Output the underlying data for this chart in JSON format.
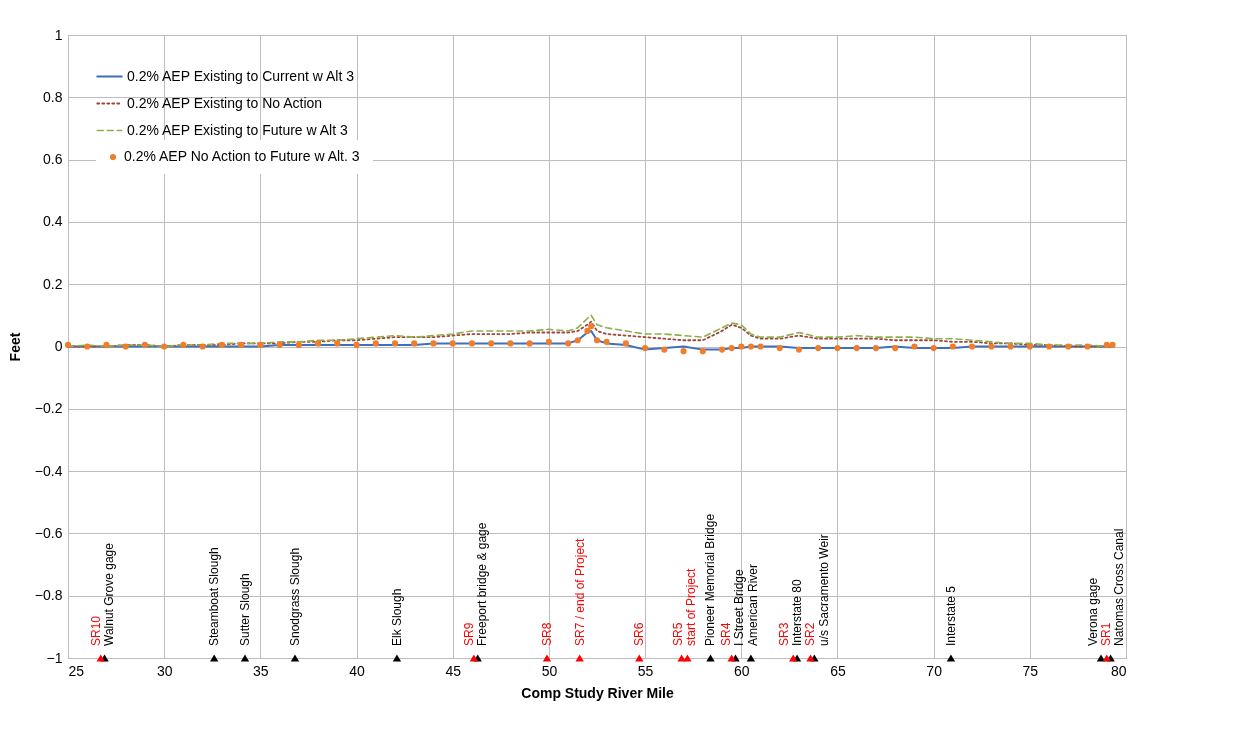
{
  "chart_data": {
    "type": "line",
    "xlabel": "Comp Study River Mile",
    "ylabel": "Feet",
    "xlim": [
      25,
      80
    ],
    "ylim": [
      -1,
      1
    ],
    "xticks": [
      25,
      30,
      35,
      40,
      45,
      50,
      55,
      60,
      65,
      70,
      75,
      80
    ],
    "yticks": [
      -1,
      -0.8,
      -0.6,
      -0.4,
      -0.2,
      0,
      0.2,
      0.4,
      0.6,
      0.8,
      1
    ],
    "grid": true,
    "legend": "top left",
    "x": [
      25,
      26,
      27,
      28,
      29,
      30,
      31,
      32,
      33,
      34,
      35,
      36,
      37,
      38,
      39,
      40,
      41,
      42,
      43,
      44,
      45,
      46,
      47,
      48,
      49,
      50,
      51,
      51.5,
      52,
      52.2,
      52.5,
      53,
      54,
      55,
      56,
      57,
      58,
      59,
      59.5,
      60,
      60.5,
      61,
      62,
      63,
      64,
      65,
      66,
      67,
      68,
      69,
      70,
      71,
      72,
      73,
      74,
      75,
      76,
      77,
      78,
      79,
      79.3
    ],
    "series": [
      {
        "name": "0.2% AEP Existing to Current w Alt 3",
        "color": "#3f6fc0",
        "line_style": "solid",
        "values": [
          0,
          0,
          0,
          0,
          0,
          0,
          0,
          0,
          0,
          0,
          0,
          0.005,
          0.005,
          0.005,
          0.005,
          0.005,
          0.005,
          0.005,
          0.005,
          0.01,
          0.01,
          0.01,
          0.01,
          0.01,
          0.01,
          0.01,
          0.01,
          0.02,
          0.045,
          0.05,
          0.02,
          0.01,
          0.005,
          -0.01,
          -0.005,
          0,
          -0.01,
          -0.01,
          -0.005,
          -0.005,
          0,
          0,
          0,
          -0.005,
          -0.005,
          -0.005,
          -0.005,
          -0.005,
          0,
          -0.005,
          -0.005,
          -0.005,
          0,
          0,
          0,
          0,
          0,
          0,
          0,
          0,
          0
        ]
      },
      {
        "name": "0.2% AEP Existing to No Action",
        "color": "#a0453a",
        "line_style": "dotted",
        "values": [
          0,
          0,
          0,
          0.005,
          0.005,
          0,
          0.005,
          0.005,
          0.005,
          0.01,
          0.01,
          0.01,
          0.015,
          0.015,
          0.02,
          0.02,
          0.025,
          0.03,
          0.03,
          0.03,
          0.035,
          0.04,
          0.04,
          0.04,
          0.045,
          0.045,
          0.045,
          0.05,
          0.07,
          0.08,
          0.05,
          0.04,
          0.035,
          0.03,
          0.025,
          0.02,
          0.02,
          0.05,
          0.07,
          0.06,
          0.035,
          0.025,
          0.025,
          0.035,
          0.025,
          0.025,
          0.025,
          0.025,
          0.02,
          0.02,
          0.02,
          0.015,
          0.015,
          0.01,
          0.01,
          0.005,
          0.005,
          0,
          0,
          0,
          0
        ]
      },
      {
        "name": "0.2% AEP Existing to Future w Alt 3",
        "color": "#8db04c",
        "line_style": "dashed",
        "values": [
          0,
          0.005,
          0,
          0.005,
          0.005,
          0,
          0.005,
          0.005,
          0.01,
          0.01,
          0.01,
          0.015,
          0.015,
          0.02,
          0.02,
          0.025,
          0.03,
          0.035,
          0.03,
          0.035,
          0.04,
          0.05,
          0.05,
          0.05,
          0.05,
          0.055,
          0.05,
          0.06,
          0.09,
          0.1,
          0.07,
          0.06,
          0.05,
          0.04,
          0.04,
          0.035,
          0.03,
          0.06,
          0.075,
          0.07,
          0.04,
          0.03,
          0.03,
          0.045,
          0.03,
          0.03,
          0.035,
          0.03,
          0.03,
          0.03,
          0.025,
          0.025,
          0.02,
          0.015,
          0.01,
          0.01,
          0.005,
          0.005,
          0.005,
          0,
          0.005
        ]
      },
      {
        "name": "0.2% AEP No Action to Future w Alt. 3",
        "color": "#f07d2a",
        "type": "scatter",
        "marker": "circle",
        "values": [
          0.005,
          0,
          0.005,
          0,
          0.005,
          0,
          0.005,
          0,
          0.005,
          0.005,
          0.005,
          0.005,
          0.005,
          0.01,
          0.01,
          0.005,
          0.01,
          0.01,
          0.01,
          0.01,
          0.01,
          0.01,
          0.01,
          0.01,
          0.01,
          0.015,
          0.01,
          0.02,
          0.05,
          0.065,
          0.02,
          0.015,
          0.01,
          -0.005,
          -0.01,
          -0.015,
          -0.015,
          -0.01,
          -0.005,
          0,
          0,
          0,
          -0.005,
          -0.01,
          -0.005,
          -0.005,
          -0.005,
          -0.005,
          -0.005,
          0,
          -0.005,
          0,
          0,
          0,
          0,
          0,
          0,
          0,
          0,
          0.005,
          0.005
        ]
      },
      {
        "name": "Walnut Grove gage",
        "type": "scatter",
        "marker": "triangle",
        "color": "#000000",
        "x": [
          26.9
        ],
        "values": [
          -1
        ]
      },
      {
        "name": "Steamboat Slough",
        "type": "scatter",
        "marker": "triangle",
        "color": "#000000",
        "x": [
          32.6
        ],
        "values": [
          -1
        ]
      },
      {
        "name": "Sutter Slough",
        "type": "scatter",
        "marker": "triangle",
        "color": "#000000",
        "x": [
          34.2
        ],
        "values": [
          -1
        ]
      },
      {
        "name": "Snodgrass Slough",
        "type": "scatter",
        "marker": "triangle",
        "color": "#000000",
        "x": [
          36.8
        ],
        "values": [
          -1
        ]
      },
      {
        "name": "Elk Slough",
        "type": "scatter",
        "marker": "triangle",
        "color": "#000000",
        "x": [
          42.1
        ],
        "values": [
          -1
        ]
      },
      {
        "name": "Freeport bridge & gage",
        "type": "scatter",
        "marker": "triangle",
        "color": "#000000",
        "x": [
          46.3
        ],
        "values": [
          -1
        ]
      },
      {
        "name": "Pioneer Memorial Bridge",
        "type": "scatter",
        "marker": "triangle",
        "color": "#000000",
        "x": [
          58.4
        ],
        "values": [
          -1
        ]
      },
      {
        "name": "I Street Bridge",
        "type": "scatter",
        "marker": "triangle",
        "color": "#000000",
        "x": [
          59.7
        ],
        "values": [
          -1
        ]
      },
      {
        "name": "American River",
        "type": "scatter",
        "marker": "triangle",
        "color": "#000000",
        "x": [
          60.5
        ],
        "values": [
          -1
        ]
      },
      {
        "name": "Interstate 80",
        "type": "scatter",
        "marker": "triangle",
        "color": "#000000",
        "x": [
          62.9
        ],
        "values": [
          -1
        ]
      },
      {
        "name": "u/s Sacramento Weir",
        "type": "scatter",
        "marker": "triangle",
        "color": "#000000",
        "x": [
          63.8
        ],
        "values": [
          -1
        ]
      },
      {
        "name": "Interstate 5",
        "type": "scatter",
        "marker": "triangle",
        "color": "#000000",
        "x": [
          70.9
        ],
        "values": [
          -1
        ]
      },
      {
        "name": "Verona gage",
        "type": "scatter",
        "marker": "triangle",
        "color": "#000000",
        "x": [
          78.7
        ],
        "values": [
          -1
        ]
      },
      {
        "name": "Natomas Cross Canal",
        "type": "scatter",
        "marker": "triangle",
        "color": "#000000",
        "x": [
          79.2
        ],
        "values": [
          -1
        ]
      },
      {
        "name": "SR10",
        "type": "scatter",
        "marker": "triangle",
        "color": "#ff0000",
        "x": [
          26.7
        ],
        "values": [
          -1
        ]
      },
      {
        "name": "SR9",
        "type": "scatter",
        "marker": "triangle",
        "color": "#ff0000",
        "x": [
          46.1
        ],
        "values": [
          -1
        ]
      },
      {
        "name": "SR8",
        "type": "scatter",
        "marker": "triangle",
        "color": "#ff0000",
        "x": [
          49.9
        ],
        "values": [
          -1
        ]
      },
      {
        "name": "SR7 / end of Project",
        "type": "scatter",
        "marker": "triangle",
        "color": "#ff0000",
        "x": [
          51.6
        ],
        "values": [
          -1
        ]
      },
      {
        "name": "SR6",
        "type": "scatter",
        "marker": "triangle",
        "color": "#ff0000",
        "x": [
          54.7
        ],
        "values": [
          -1
        ]
      },
      {
        "name": "SR5",
        "type": "scatter",
        "marker": "triangle",
        "color": "#ff0000",
        "x": [
          56.9
        ],
        "values": [
          -1
        ]
      },
      {
        "name": "start of Project",
        "type": "scatter",
        "marker": "triangle",
        "color": "#ff0000",
        "x": [
          57.2
        ],
        "values": [
          -1
        ]
      },
      {
        "name": "SR4",
        "type": "scatter",
        "marker": "triangle",
        "color": "#ff0000",
        "x": [
          59.5
        ],
        "values": [
          -1
        ]
      },
      {
        "name": "SR3",
        "type": "scatter",
        "marker": "triangle",
        "color": "#ff0000",
        "x": [
          62.7
        ],
        "values": [
          -1
        ]
      },
      {
        "name": "SR2",
        "type": "scatter",
        "marker": "triangle",
        "color": "#ff0000",
        "x": [
          63.6
        ],
        "values": [
          -1
        ]
      },
      {
        "name": "SR1",
        "type": "scatter",
        "marker": "triangle",
        "color": "#ff0000",
        "x": [
          79.0
        ],
        "values": [
          -1
        ]
      }
    ]
  }
}
